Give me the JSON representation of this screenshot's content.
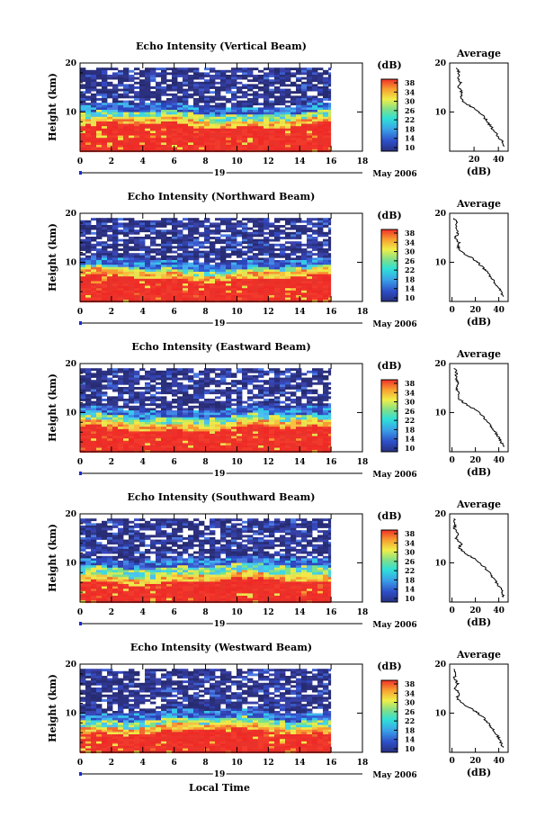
{
  "figure": {
    "x_axis_title": "Local Time",
    "date_day": "19",
    "date_month_year": "May 2006"
  },
  "chart_data": [
    {
      "type": "heatmap",
      "title": "Echo Intensity (Vertical Beam)",
      "ylabel": "Height (km)",
      "xlim": [
        0,
        18
      ],
      "ylim": [
        2,
        20
      ],
      "xticks": [
        "0",
        "2",
        "4",
        "6",
        "8",
        "10",
        "12",
        "14",
        "16",
        "18"
      ],
      "yticks": [
        "20",
        "10"
      ],
      "colorbar": {
        "label": "(dB)",
        "ticks": [
          "38",
          "34",
          "30",
          "26",
          "22",
          "18",
          "14",
          "10"
        ],
        "range": [
          10,
          38
        ]
      },
      "data_end_hour": 16,
      "layers_km": {
        "red_top": 7.5,
        "yellow_top": 10,
        "noise_top": 19
      },
      "average_profile": {
        "title": "Average",
        "xlabel": "(dB)",
        "xticks": [
          "20",
          "40"
        ],
        "xlim": [
          0,
          48
        ],
        "ylim": [
          2,
          20
        ],
        "points": [
          [
            6,
            19
          ],
          [
            8,
            18
          ],
          [
            7,
            17
          ],
          [
            9,
            16
          ],
          [
            7,
            15
          ],
          [
            10,
            14
          ],
          [
            9,
            13
          ],
          [
            12,
            12
          ],
          [
            18,
            11
          ],
          [
            24,
            10
          ],
          [
            28,
            9
          ],
          [
            31,
            8
          ],
          [
            34,
            7
          ],
          [
            37,
            6
          ],
          [
            40,
            5
          ],
          [
            43,
            4
          ],
          [
            45,
            3
          ]
        ]
      }
    },
    {
      "type": "heatmap",
      "title": "Echo Intensity (Northward Beam)",
      "ylabel": "Height (km)",
      "xlim": [
        0,
        18
      ],
      "ylim": [
        2,
        20
      ],
      "xticks": [
        "0",
        "2",
        "4",
        "6",
        "8",
        "10",
        "12",
        "14",
        "16",
        "18"
      ],
      "yticks": [
        "20",
        "10"
      ],
      "colorbar": {
        "label": "(dB)",
        "ticks": [
          "38",
          "34",
          "30",
          "26",
          "22",
          "18",
          "14",
          "10"
        ],
        "range": [
          10,
          38
        ]
      },
      "data_end_hour": 16,
      "layers_km": {
        "red_top": 7,
        "yellow_top": 9,
        "noise_top": 19
      },
      "average_profile": {
        "title": "Average",
        "xlabel": "(dB)",
        "xticks": [
          "0",
          "20",
          "40"
        ],
        "xlim": [
          -2,
          48
        ],
        "ylim": [
          2,
          20
        ],
        "points": [
          [
            2,
            19
          ],
          [
            4,
            18
          ],
          [
            3,
            17
          ],
          [
            5,
            16
          ],
          [
            3,
            15
          ],
          [
            6,
            14
          ],
          [
            5,
            13
          ],
          [
            9,
            12
          ],
          [
            16,
            11
          ],
          [
            22,
            10
          ],
          [
            26,
            9
          ],
          [
            30,
            8
          ],
          [
            33,
            7
          ],
          [
            36,
            6
          ],
          [
            39,
            5
          ],
          [
            42,
            4
          ],
          [
            44,
            3
          ]
        ]
      }
    },
    {
      "type": "heatmap",
      "title": "Echo Intensity (Eastward Beam)",
      "ylabel": "Height (km)",
      "xlim": [
        0,
        18
      ],
      "ylim": [
        2,
        20
      ],
      "xticks": [
        "0",
        "2",
        "4",
        "6",
        "8",
        "10",
        "12",
        "14",
        "16",
        "18"
      ],
      "yticks": [
        "20",
        "10"
      ],
      "colorbar": {
        "label": "(dB)",
        "ticks": [
          "38",
          "34",
          "30",
          "26",
          "22",
          "18",
          "14",
          "10"
        ],
        "range": [
          10,
          38
        ]
      },
      "data_end_hour": 16,
      "layers_km": {
        "red_top": 7,
        "yellow_top": 9.5,
        "noise_top": 19
      },
      "average_profile": {
        "title": "Average",
        "xlabel": "(dB)",
        "xticks": [
          "0",
          "20",
          "40"
        ],
        "xlim": [
          -2,
          48
        ],
        "ylim": [
          2,
          20
        ],
        "points": [
          [
            2,
            19
          ],
          [
            4,
            18
          ],
          [
            3,
            17
          ],
          [
            6,
            16
          ],
          [
            3,
            15
          ],
          [
            7,
            14
          ],
          [
            5,
            13
          ],
          [
            10,
            12
          ],
          [
            17,
            11
          ],
          [
            23,
            10
          ],
          [
            27,
            9
          ],
          [
            31,
            8
          ],
          [
            34,
            7
          ],
          [
            37,
            6
          ],
          [
            40,
            5
          ],
          [
            42,
            4
          ],
          [
            44,
            3
          ]
        ]
      }
    },
    {
      "type": "heatmap",
      "title": "Echo Intensity (Southward Beam)",
      "ylabel": "Height (km)",
      "xlim": [
        0,
        18
      ],
      "ylim": [
        2,
        20
      ],
      "xticks": [
        "0",
        "2",
        "4",
        "6",
        "8",
        "10",
        "12",
        "14",
        "16",
        "18"
      ],
      "yticks": [
        "20",
        "10"
      ],
      "colorbar": {
        "label": "(dB)",
        "ticks": [
          "38",
          "34",
          "30",
          "26",
          "22",
          "18",
          "14",
          "10"
        ],
        "range": [
          10,
          38
        ]
      },
      "data_end_hour": 16,
      "layers_km": {
        "red_top": 6.5,
        "yellow_top": 9.5,
        "noise_top": 19
      },
      "average_profile": {
        "title": "Average",
        "xlabel": "(dB)",
        "xticks": [
          "0",
          "20",
          "40"
        ],
        "xlim": [
          -2,
          48
        ],
        "ylim": [
          2,
          20
        ],
        "points": [
          [
            2,
            19
          ],
          [
            3,
            18
          ],
          [
            2,
            17
          ],
          [
            5,
            16
          ],
          [
            3,
            15
          ],
          [
            8,
            14
          ],
          [
            6,
            13
          ],
          [
            11,
            12
          ],
          [
            18,
            11
          ],
          [
            24,
            10
          ],
          [
            28,
            9
          ],
          [
            32,
            8
          ],
          [
            35,
            7
          ],
          [
            38,
            6
          ],
          [
            41,
            5
          ],
          [
            43,
            4
          ],
          [
            44,
            3
          ]
        ]
      }
    },
    {
      "type": "heatmap",
      "title": "Echo Intensity (Westward Beam)",
      "ylabel": "Height (km)",
      "xlim": [
        0,
        18
      ],
      "ylim": [
        2,
        20
      ],
      "xticks": [
        "0",
        "2",
        "4",
        "6",
        "8",
        "10",
        "12",
        "14",
        "16",
        "18"
      ],
      "yticks": [
        "20",
        "10"
      ],
      "colorbar": {
        "label": "(dB)",
        "ticks": [
          "38",
          "34",
          "30",
          "26",
          "22",
          "18",
          "14",
          "10"
        ],
        "range": [
          10,
          38
        ]
      },
      "data_end_hour": 16,
      "layers_km": {
        "red_top": 6.5,
        "yellow_top": 9,
        "noise_top": 19
      },
      "average_profile": {
        "title": "Average",
        "xlabel": "(dB)",
        "xticks": [
          "0",
          "20",
          "40"
        ],
        "xlim": [
          -2,
          48
        ],
        "ylim": [
          2,
          20
        ],
        "points": [
          [
            2,
            19
          ],
          [
            3,
            18
          ],
          [
            2,
            17
          ],
          [
            5,
            16
          ],
          [
            3,
            15
          ],
          [
            6,
            14
          ],
          [
            4,
            13
          ],
          [
            9,
            12
          ],
          [
            16,
            11
          ],
          [
            22,
            10
          ],
          [
            27,
            9
          ],
          [
            31,
            8
          ],
          [
            34,
            7
          ],
          [
            37,
            6
          ],
          [
            40,
            5
          ],
          [
            42,
            4
          ],
          [
            44,
            3
          ]
        ]
      }
    }
  ]
}
